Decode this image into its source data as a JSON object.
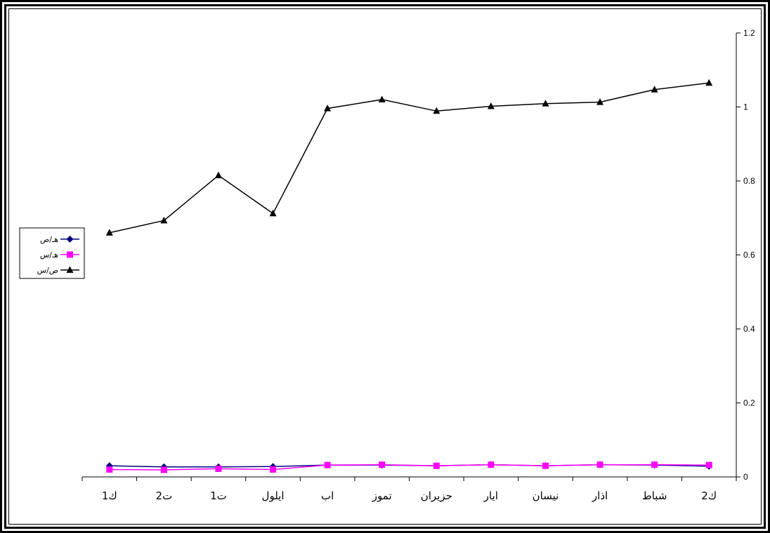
{
  "chart_data": {
    "type": "line",
    "categories": [
      "ك1",
      "ت2",
      "ت1",
      "ايلول",
      "اب",
      "تموز",
      "حزيران",
      "ايار",
      "نيسان",
      "اذار",
      "شباط",
      "ك2"
    ],
    "series": [
      {
        "name": "هـ/ص",
        "color": "#000080",
        "marker": "diamond",
        "values": [
          0.03,
          0.027,
          0.027,
          0.028,
          0.032,
          0.032,
          0.03,
          0.033,
          0.03,
          0.033,
          0.032,
          0.029
        ]
      },
      {
        "name": "هـ/س",
        "color": "#ff00ff",
        "marker": "square",
        "values": [
          0.02,
          0.019,
          0.022,
          0.02,
          0.032,
          0.033,
          0.03,
          0.033,
          0.03,
          0.033,
          0.033,
          0.032
        ]
      },
      {
        "name": "ص/س",
        "color": "#000000",
        "marker": "triangle",
        "values": [
          0.66,
          0.693,
          0.815,
          0.712,
          0.996,
          1.02,
          0.989,
          1.002,
          1.009,
          1.013,
          1.047,
          1.065
        ]
      }
    ],
    "ylim": [
      0,
      1.2
    ],
    "yticks": [
      "0",
      "0.2",
      "0.4",
      "0.6",
      "0.8",
      "1",
      "1.2"
    ],
    "yaxis_side": "right",
    "grid": false,
    "legend_position": "left"
  }
}
